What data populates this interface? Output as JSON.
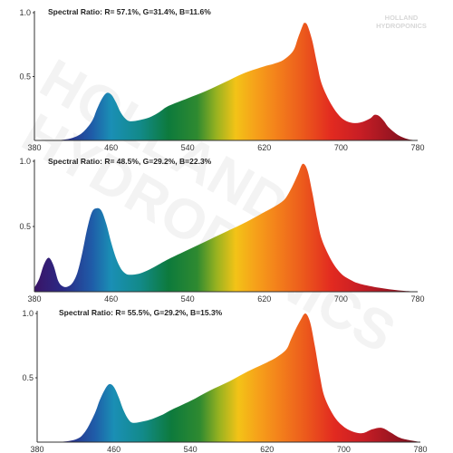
{
  "watermark": {
    "line1": "HOLLAND",
    "line2": "HYDROPONICS"
  },
  "logo": {
    "line1": "HOLLAND",
    "line2": "HYDROPONICS"
  },
  "spectrum_colors": [
    [
      380,
      "#3a1466"
    ],
    [
      410,
      "#2a2a86"
    ],
    [
      440,
      "#1f5ca8"
    ],
    [
      460,
      "#1a8fb5"
    ],
    [
      490,
      "#128a8a"
    ],
    [
      520,
      "#0d7a3c"
    ],
    [
      550,
      "#2f8a30"
    ],
    [
      570,
      "#98b220"
    ],
    [
      590,
      "#f3c317"
    ],
    [
      610,
      "#f6a21a"
    ],
    [
      630,
      "#f4851b"
    ],
    [
      660,
      "#ec5a1c"
    ],
    [
      690,
      "#e22a20"
    ],
    [
      720,
      "#c81e25"
    ],
    [
      760,
      "#8e1320"
    ],
    [
      780,
      "#6a0e18"
    ]
  ],
  "chart_data": [
    {
      "type": "area",
      "title": "Spectral Ratio: R= 57.1%, G=31.4%, B=11.6%",
      "xlabel": "",
      "ylabel": "",
      "xlim": [
        380,
        780
      ],
      "ylim": [
        0,
        1.0
      ],
      "x_ticks": [
        "380",
        "460",
        "540",
        "620",
        "700",
        "780"
      ],
      "y_ticks": [
        "0.5",
        "1.0"
      ],
      "grid": false,
      "series": [
        {
          "x": [
            380,
            400,
            410,
            420,
            430,
            440,
            445,
            450,
            455,
            460,
            465,
            470,
            475,
            480,
            490,
            500,
            510,
            520,
            540,
            560,
            580,
            600,
            620,
            630,
            640,
            650,
            655,
            660,
            662,
            665,
            670,
            675,
            680,
            690,
            700,
            710,
            720,
            730,
            735,
            740,
            745,
            750,
            760,
            770,
            780
          ],
          "y": [
            0,
            0,
            0.005,
            0.02,
            0.06,
            0.15,
            0.24,
            0.32,
            0.37,
            0.36,
            0.3,
            0.22,
            0.17,
            0.15,
            0.16,
            0.18,
            0.22,
            0.27,
            0.33,
            0.39,
            0.46,
            0.53,
            0.58,
            0.6,
            0.63,
            0.7,
            0.8,
            0.9,
            0.92,
            0.9,
            0.78,
            0.6,
            0.44,
            0.28,
            0.18,
            0.14,
            0.14,
            0.17,
            0.2,
            0.19,
            0.15,
            0.1,
            0.04,
            0.01,
            0
          ]
        }
      ]
    },
    {
      "type": "area",
      "title": "Spectral Ratio: R= 48.5%, G=29.2%, B=22.3%",
      "xlabel": "",
      "ylabel": "",
      "xlim": [
        380,
        780
      ],
      "ylim": [
        0,
        1.0
      ],
      "x_ticks": [
        "380",
        "460",
        "540",
        "620",
        "700",
        "780"
      ],
      "y_ticks": [
        "0.5",
        "1.0"
      ],
      "grid": false,
      "series": [
        {
          "x": [
            380,
            385,
            390,
            395,
            400,
            405,
            410,
            415,
            420,
            425,
            430,
            435,
            440,
            445,
            450,
            455,
            460,
            465,
            470,
            475,
            480,
            490,
            500,
            510,
            520,
            540,
            560,
            580,
            600,
            620,
            630,
            640,
            645,
            650,
            655,
            660,
            665,
            670,
            675,
            680,
            690,
            700,
            710,
            720,
            740,
            760,
            780
          ],
          "y": [
            0.03,
            0.1,
            0.21,
            0.26,
            0.2,
            0.08,
            0.04,
            0.04,
            0.07,
            0.15,
            0.3,
            0.48,
            0.61,
            0.64,
            0.62,
            0.52,
            0.38,
            0.26,
            0.18,
            0.14,
            0.13,
            0.14,
            0.17,
            0.21,
            0.25,
            0.32,
            0.39,
            0.46,
            0.53,
            0.61,
            0.65,
            0.7,
            0.75,
            0.82,
            0.9,
            0.98,
            0.93,
            0.76,
            0.56,
            0.4,
            0.24,
            0.14,
            0.09,
            0.06,
            0.03,
            0.01,
            0
          ]
        }
      ]
    },
    {
      "type": "area",
      "title": "Spectral Ratio: R= 55.5%, G=29.2%, B=15.3%",
      "xlabel": "",
      "ylabel": "",
      "xlim": [
        380,
        780
      ],
      "ylim": [
        0,
        1.0
      ],
      "x_ticks": [
        "380",
        "460",
        "540",
        "620",
        "700",
        "780"
      ],
      "y_ticks": [
        "0.5",
        "1.0"
      ],
      "grid": false,
      "series": [
        {
          "x": [
            380,
            400,
            420,
            430,
            440,
            445,
            450,
            455,
            460,
            465,
            470,
            475,
            480,
            490,
            500,
            510,
            520,
            540,
            560,
            580,
            600,
            620,
            630,
            640,
            645,
            650,
            655,
            660,
            665,
            670,
            675,
            680,
            690,
            700,
            710,
            720,
            730,
            740,
            750,
            760,
            780
          ],
          "y": [
            0,
            0,
            0.02,
            0.08,
            0.22,
            0.32,
            0.4,
            0.45,
            0.43,
            0.35,
            0.25,
            0.18,
            0.15,
            0.16,
            0.18,
            0.21,
            0.25,
            0.32,
            0.4,
            0.47,
            0.55,
            0.62,
            0.66,
            0.72,
            0.8,
            0.88,
            0.95,
            1.0,
            0.93,
            0.74,
            0.52,
            0.35,
            0.2,
            0.12,
            0.08,
            0.07,
            0.1,
            0.11,
            0.07,
            0.03,
            0
          ]
        }
      ]
    }
  ]
}
